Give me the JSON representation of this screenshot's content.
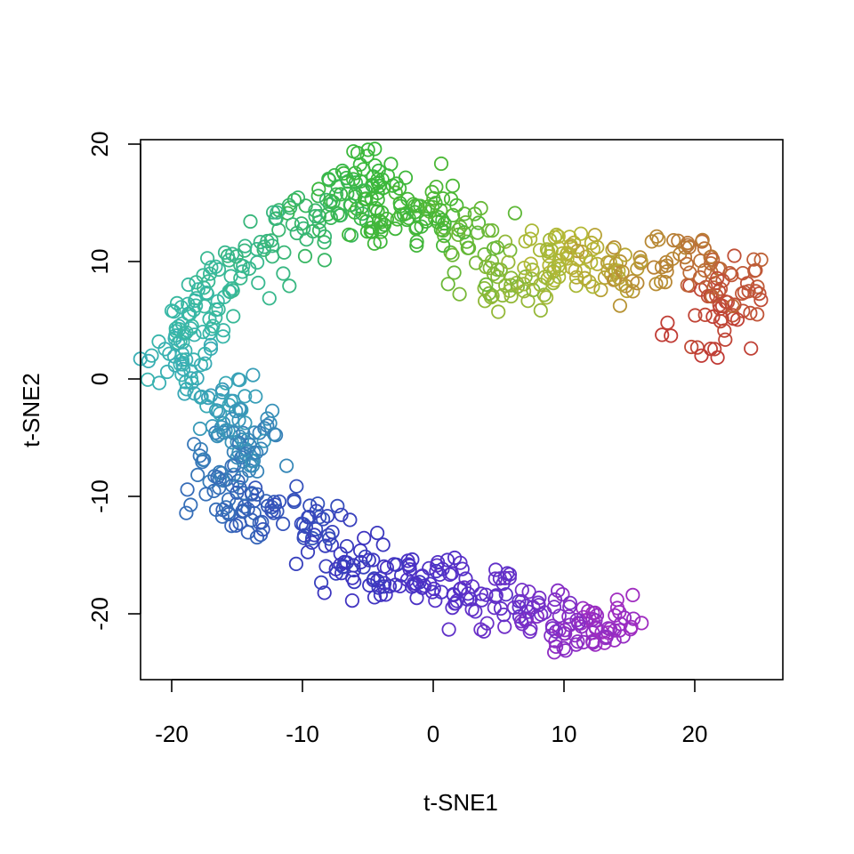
{
  "chart_data": {
    "type": "scatter",
    "title": "",
    "xlabel": "t-SNE1",
    "ylabel": "t-SNE2",
    "xlim": [
      -22,
      27
    ],
    "ylim": [
      -26,
      20.5
    ],
    "x_ticks": [
      -20,
      -10,
      0,
      10,
      20
    ],
    "y_ticks": [
      -20,
      -10,
      0,
      10,
      20
    ],
    "x_tick_labels": [
      "-20",
      "-10",
      "0",
      "10",
      "20"
    ],
    "y_tick_labels": [
      "-20",
      "-10",
      "0",
      "10",
      "20"
    ],
    "grid": false,
    "legend": "none",
    "marker": "open-circle",
    "color_scale": "rainbow hue along the path, from magenta-purple (t=0) through blue, teal, green, yellow-green, orange to red (t=1)",
    "path_keypoints": [
      {
        "t": 0.0,
        "x": 14.5,
        "y": -21.5,
        "color": "#a22dc0"
      },
      {
        "t": 0.05,
        "x": 10.5,
        "y": -21.5,
        "color": "#8c2dc4"
      },
      {
        "t": 0.09,
        "x": 6.5,
        "y": -19.5,
        "color": "#7130c8"
      },
      {
        "t": 0.13,
        "x": 2.5,
        "y": -18.0,
        "color": "#5a30c8"
      },
      {
        "t": 0.17,
        "x": -2.0,
        "y": -16.5,
        "color": "#4732c4"
      },
      {
        "t": 0.21,
        "x": -6.0,
        "y": -16.0,
        "color": "#3a37be"
      },
      {
        "t": 0.25,
        "x": -10.5,
        "y": -11.5,
        "color": "#3550bb"
      },
      {
        "t": 0.28,
        "x": -14.5,
        "y": -12.0,
        "color": "#3560b8"
      },
      {
        "t": 0.32,
        "x": -17.0,
        "y": -8.0,
        "color": "#3775b8"
      },
      {
        "t": 0.36,
        "x": -14.0,
        "y": -6.0,
        "color": "#3888b8"
      },
      {
        "t": 0.4,
        "x": -15.5,
        "y": -2.0,
        "color": "#39a0b8"
      },
      {
        "t": 0.44,
        "x": -19.5,
        "y": 1.0,
        "color": "#39b0b3"
      },
      {
        "t": 0.48,
        "x": -18.0,
        "y": 5.0,
        "color": "#38b8a5"
      },
      {
        "t": 0.52,
        "x": -15.0,
        "y": 9.5,
        "color": "#38b890"
      },
      {
        "t": 0.56,
        "x": -11.5,
        "y": 12.5,
        "color": "#38b67a"
      },
      {
        "t": 0.6,
        "x": -8.0,
        "y": 14.0,
        "color": "#38b65c"
      },
      {
        "t": 0.64,
        "x": -5.0,
        "y": 17.5,
        "color": "#3bb83a"
      },
      {
        "t": 0.68,
        "x": -3.0,
        "y": 12.5,
        "color": "#40b63a"
      },
      {
        "t": 0.72,
        "x": 1.0,
        "y": 16.0,
        "color": "#4eb835"
      },
      {
        "t": 0.76,
        "x": 3.0,
        "y": 10.5,
        "color": "#6ab838"
      },
      {
        "t": 0.8,
        "x": 7.0,
        "y": 8.0,
        "color": "#96b838"
      },
      {
        "t": 0.84,
        "x": 10.5,
        "y": 11.0,
        "color": "#b5b835"
      },
      {
        "t": 0.88,
        "x": 14.0,
        "y": 8.5,
        "color": "#b89a35"
      },
      {
        "t": 0.92,
        "x": 18.5,
        "y": 10.5,
        "color": "#b88035"
      },
      {
        "t": 0.95,
        "x": 23.5,
        "y": 8.5,
        "color": "#c05838"
      },
      {
        "t": 1.0,
        "x": 20.5,
        "y": 3.5,
        "color": "#c03a35"
      }
    ],
    "point_count": 900
  }
}
